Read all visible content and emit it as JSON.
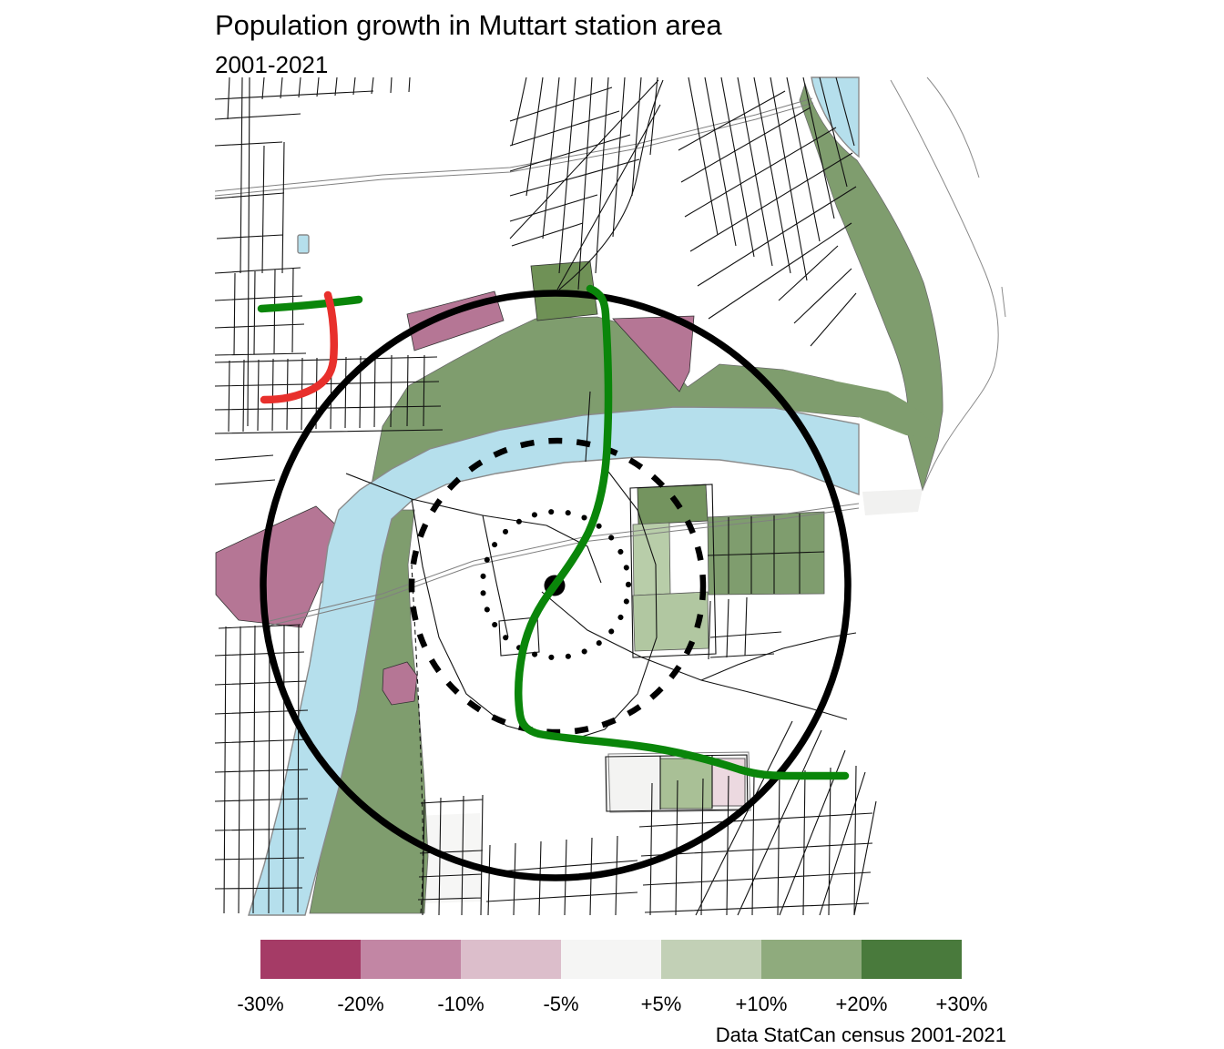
{
  "title": "Population growth in Muttart station area",
  "subtitle": "2001-2021",
  "caption": "Data StatCan census 2001-2021",
  "legend": {
    "type": "choropleth-scale",
    "unit": "percent population change",
    "labels": [
      "-30%",
      "-20%",
      "-10%",
      "-5%",
      "+5%",
      "+10%",
      "+20%",
      "+30%"
    ],
    "bin_colors": [
      "#a53b66",
      "#c286a4",
      "#dcbecb",
      "#f5f5f4",
      "#c2d0b6",
      "#8fab7d",
      "#497a3c"
    ]
  },
  "map": {
    "colors": {
      "river": "#b5dfec",
      "river_valley_green": "#7f9d6e",
      "decline_strong_pink": "#b57695",
      "decline_light_pink": "#ecd9e0",
      "growth_pale_green": "#b8cda9",
      "growth_medium_green": "#7f9d6e",
      "growth_strong_green": "#6f9156",
      "transit_green_line": "#0a860a",
      "transit_red_line": "#e8302c",
      "rings_and_station": "#000000",
      "street_lines": "#111111",
      "road_casing_gray": "#808080"
    },
    "station_marker": "filled black dot at map center",
    "rings": [
      {
        "name": "outer-ring",
        "style": "solid"
      },
      {
        "name": "middle-ring",
        "style": "dashed"
      },
      {
        "name": "inner-ring",
        "style": "dotted"
      }
    ]
  }
}
